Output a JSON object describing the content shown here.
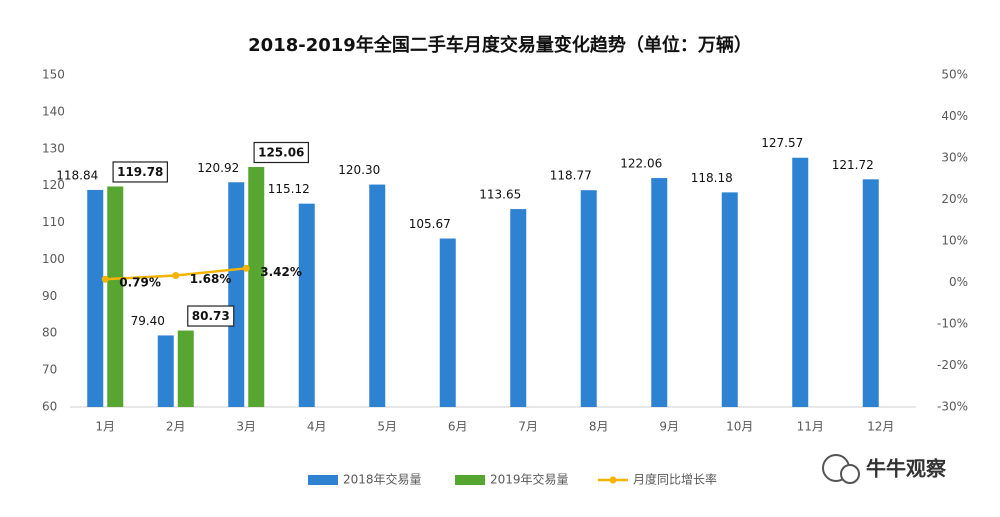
{
  "chart_data": {
    "type": "bar",
    "title": "2018-2019年全国二手车月度交易量变化趋势（单位：万辆）",
    "categories": [
      "1月",
      "2月",
      "3月",
      "4月",
      "5月",
      "6月",
      "7月",
      "8月",
      "9月",
      "10月",
      "11月",
      "12月"
    ],
    "series": [
      {
        "name": "2018年交易量",
        "color": "#2e82d2",
        "values": [
          118.84,
          79.4,
          120.92,
          115.12,
          120.3,
          105.67,
          113.65,
          118.77,
          122.06,
          118.18,
          127.57,
          121.72
        ],
        "value_labels": [
          "118.84",
          "79.40",
          "120.92",
          "115.12",
          "120.30",
          "105.67",
          "113.65",
          "118.77",
          "122.06",
          "118.18",
          "127.57",
          "121.72"
        ]
      },
      {
        "name": "2019年交易量",
        "color": "#57a631",
        "values": [
          119.78,
          80.73,
          125.06,
          null,
          null,
          null,
          null,
          null,
          null,
          null,
          null,
          null
        ],
        "value_labels": [
          "119.78",
          "80.73",
          "125.06",
          null,
          null,
          null,
          null,
          null,
          null,
          null,
          null,
          null
        ]
      },
      {
        "name": "月度同比增长率",
        "color": "#f5b300",
        "type": "line",
        "axis": "y2",
        "values": [
          0.79,
          1.68,
          3.42,
          null,
          null,
          null,
          null,
          null,
          null,
          null,
          null,
          null
        ],
        "value_labels": [
          "0.79%",
          "1.68%",
          "3.42%",
          null,
          null,
          null,
          null,
          null,
          null,
          null,
          null,
          null
        ]
      }
    ],
    "ylim": [
      60,
      150
    ],
    "yticks": [
      60,
      70,
      80,
      90,
      100,
      110,
      120,
      130,
      140,
      150
    ],
    "y2lim": [
      -30,
      50
    ],
    "y2ticks": [
      {
        "value": -30,
        "label": "-30%"
      },
      {
        "value": -20,
        "label": "-20%"
      },
      {
        "value": -10,
        "label": "-10%"
      },
      {
        "value": 0,
        "label": "0%"
      },
      {
        "value": 10,
        "label": "10%"
      },
      {
        "value": 20,
        "label": "20%"
      },
      {
        "value": 30,
        "label": "30%"
      },
      {
        "value": 40,
        "label": "40%"
      },
      {
        "value": 50,
        "label": "50%"
      }
    ],
    "legend": "bottom",
    "watermark": "牛牛观察"
  }
}
